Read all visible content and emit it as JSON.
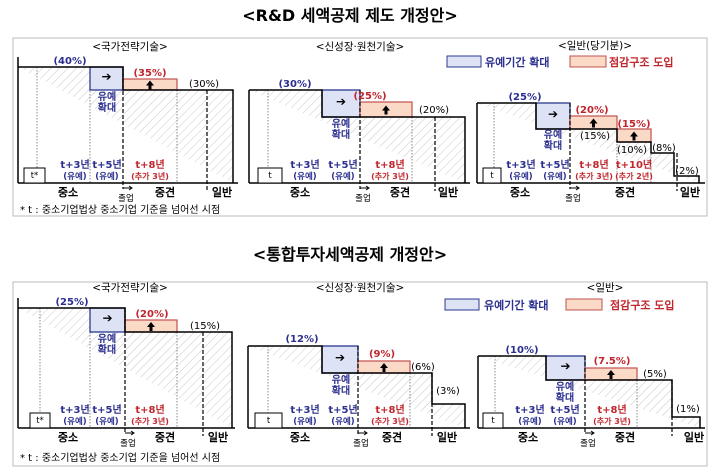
{
  "titles": {
    "rnd": "<R&D 세액공제 제도 개정안>",
    "invest": "<통합투자세액공제 개정안>"
  },
  "legend": {
    "extend": "유예기간 확대",
    "taper": "점감구조 도입"
  },
  "common": {
    "small": "중소",
    "mid": "중견",
    "general": "일반",
    "graduate": "졸업",
    "ext1": "유예",
    "ext2": "확대",
    "grace": "(유예)",
    "t3": "t+3년",
    "t5": "t+5년",
    "t8": "t+8년",
    "t10": "t+10년",
    "add3": "(추가 3년)",
    "add2": "(추가 2년)",
    "t_star": "t*",
    "t": "t",
    "footnote": "* t : 중소기업법상 중소기업 기준을 넘어선 시점"
  },
  "rnd": {
    "national": {
      "title": "<국가전략기술>",
      "small_rate": "(40%)",
      "mid_new": "(35%)",
      "mid_rate": "(30%)"
    },
    "growth": {
      "title": "<신성장·원천기술>",
      "small_rate": "(30%)",
      "mid_new": "(25%)",
      "mid_rate": "(20%)"
    },
    "general": {
      "title": "<일반(당기분)>",
      "small_rate": "(25%)",
      "mid_new1": "(20%)",
      "mid_rate1": "(15%)",
      "mid_new2": "(15%)",
      "mid_rate2": "(10%)",
      "gen_rate1": "(8%)",
      "gen_rate2": "(2%)"
    }
  },
  "invest": {
    "national": {
      "title": "<국가전략기술>",
      "small_rate": "(25%)",
      "mid_new": "(20%)",
      "mid_rate": "(15%)"
    },
    "growth": {
      "title": "<신성장·원천기술>",
      "small_rate": "(12%)",
      "mid_new": "(9%)",
      "mid_rate": "(6%)",
      "gen_rate": "(3%)"
    },
    "general": {
      "title": "<일반>",
      "small_rate": "(10%)",
      "mid_new": "(7.5%)",
      "mid_rate": "(5%)",
      "gen_rate": "(1%)"
    }
  },
  "colors": {
    "blue_fill": "#dde3f5",
    "blue_stroke": "#2b3990",
    "red_fill": "#fbd9c7",
    "red_stroke": "#c0504d"
  }
}
